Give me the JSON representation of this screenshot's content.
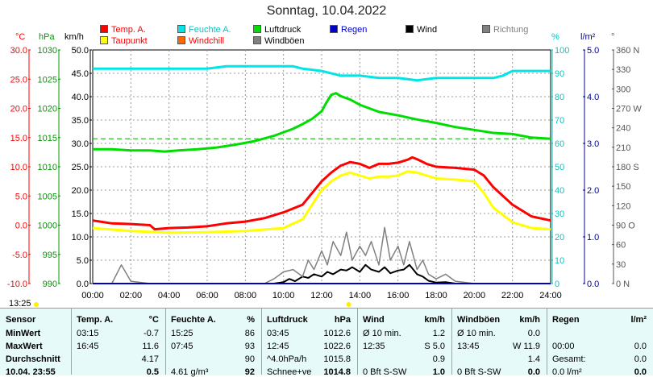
{
  "title": "Sonntag, 10.04.2022",
  "legend": [
    {
      "label": "Temp. A.",
      "color": "#ff0000",
      "text_color": "#ff0000"
    },
    {
      "label": "Taupunkt",
      "color": "#ffff00",
      "text_color": "#ff0000"
    },
    {
      "label": "Feuchte A.",
      "color": "#00e5e5",
      "text_color": "#00c8c8"
    },
    {
      "label": "Windchill",
      "color": "#ff6600",
      "text_color": "#ff0000"
    },
    {
      "label": "Luftdruck",
      "color": "#00dd00",
      "text_color": "#000000"
    },
    {
      "label": "Windböen",
      "color": "#808080",
      "text_color": "#000000"
    },
    {
      "label": "Regen",
      "color": "#0000cc",
      "text_color": "#0000cc"
    },
    {
      "label": "Wind",
      "color": "#000000",
      "text_color": "#000000"
    },
    {
      "label": "Richtung",
      "color": "#808080",
      "text_color": "#808080"
    }
  ],
  "units": {
    "temp": "°C",
    "press": "hPa",
    "wind": "km/h",
    "hum": "%",
    "rain": "l/m²",
    "dir": "°"
  },
  "current_time": "13:25",
  "chart_data": {
    "type": "line",
    "x_ticks": [
      "00:00",
      "02:00",
      "04:00",
      "06:00",
      "08:00",
      "10:00",
      "12:00",
      "14:00",
      "16:00",
      "18:00",
      "20:00",
      "22:00",
      "24:00"
    ],
    "axes": {
      "temp": {
        "ticks": [
          "30.0",
          "25.0",
          "20.0",
          "15.0",
          "10.0",
          "5.0",
          "0.0",
          "-5.0",
          "-10.0"
        ],
        "range": [
          -10,
          30
        ],
        "color": "#ff0000"
      },
      "press": {
        "ticks": [
          "1030",
          "1025",
          "1020",
          "1015",
          "1010",
          "1005",
          "1000",
          "995",
          "990"
        ],
        "range": [
          990,
          1030
        ],
        "color": "#009900"
      },
      "wind": {
        "ticks": [
          "50.0",
          "45.0",
          "40.0",
          "35.0",
          "30.0",
          "25.0",
          "20.0",
          "15.0",
          "10.0",
          "5.0",
          "0.0"
        ],
        "range": [
          0,
          50
        ],
        "color": "#000000"
      },
      "hum": {
        "ticks": [
          "100",
          "90",
          "80",
          "70",
          "60",
          "50",
          "40",
          "30",
          "20",
          "10",
          "0"
        ],
        "range": [
          0,
          100
        ],
        "color": "#00c8c8"
      },
      "rain": {
        "ticks": [
          "5.0",
          "4.0",
          "3.0",
          "2.0",
          "1.0",
          "0.0"
        ],
        "range": [
          0,
          5
        ],
        "color": "#000099"
      },
      "dir": {
        "ticks": [
          "360 N",
          "330",
          "300",
          "270 W",
          "240",
          "210",
          "180 S",
          "150",
          "120",
          "90 O",
          "60",
          "30",
          "0 N"
        ],
        "range": [
          0,
          360
        ],
        "color": "#555555"
      }
    },
    "series": [
      {
        "name": "Temp. A.",
        "axis": "temp",
        "color": "#ff0000",
        "x": [
          0,
          1,
          2,
          3,
          3.25,
          4,
          5,
          6,
          7,
          8,
          9,
          10,
          11,
          11.5,
          12,
          12.5,
          13,
          13.5,
          14,
          14.5,
          15,
          15.5,
          16,
          16.5,
          16.75,
          17,
          17.5,
          18,
          19,
          20,
          20.5,
          21,
          22,
          23,
          24
        ],
        "y": [
          0.8,
          0.3,
          0.2,
          0,
          -0.7,
          -0.5,
          -0.4,
          -0.2,
          0.3,
          0.6,
          1.2,
          2.2,
          3.5,
          5.5,
          7.5,
          9,
          10.2,
          10.8,
          10.5,
          9.8,
          10.5,
          10.5,
          10.7,
          11.2,
          11.6,
          11.3,
          10.5,
          10,
          9.8,
          9.5,
          8.5,
          6.5,
          3.5,
          1.5,
          0.8
        ]
      },
      {
        "name": "Taupunkt",
        "axis": "temp",
        "color": "#ffff00",
        "x": [
          0,
          2,
          4,
          6,
          8,
          10,
          11,
          11.5,
          12,
          12.5,
          13,
          13.5,
          14,
          14.5,
          15,
          15.5,
          16,
          16.5,
          17,
          17.5,
          18,
          19,
          20,
          20.5,
          21,
          22,
          23,
          24
        ],
        "y": [
          -0.5,
          -1,
          -1.3,
          -1.2,
          -1,
          -0.5,
          1,
          3.5,
          6,
          7.5,
          8.5,
          9,
          8.5,
          8,
          8.3,
          8.3,
          8.5,
          9.2,
          9,
          8.5,
          8,
          7.8,
          7.5,
          5.5,
          3,
          0.5,
          -0.5,
          -0.7
        ]
      },
      {
        "name": "Feuchte A.",
        "axis": "hum",
        "color": "#00e5e5",
        "x": [
          0,
          2,
          4,
          6,
          7,
          9,
          10.5,
          11,
          12,
          13,
          14,
          15,
          16,
          17,
          18,
          19,
          20,
          21,
          21.5,
          22,
          23,
          24
        ],
        "y": [
          92,
          92,
          92,
          92,
          93,
          93,
          93,
          92,
          91,
          89,
          89,
          88,
          88,
          87,
          88,
          88,
          88,
          88,
          89,
          91,
          91,
          91
        ]
      },
      {
        "name": "Luftdruck",
        "axis": "press",
        "color": "#00dd00",
        "x": [
          0,
          1,
          2,
          3,
          3.75,
          4.5,
          5.5,
          6.5,
          7.5,
          8.5,
          9.5,
          10.5,
          11,
          11.5,
          12,
          12.25,
          12.5,
          12.75,
          13,
          13.5,
          14,
          14.5,
          15,
          16,
          17,
          18,
          19,
          20,
          21,
          22,
          23,
          24
        ],
        "y": [
          1013,
          1013,
          1012.8,
          1012.8,
          1012.6,
          1012.8,
          1013,
          1013.3,
          1013.8,
          1014.4,
          1015.3,
          1016.5,
          1017.3,
          1018.2,
          1019.5,
          1021,
          1022.3,
          1022.6,
          1022.1,
          1021.5,
          1020.6,
          1020,
          1019.4,
          1018.8,
          1018.1,
          1017.5,
          1016.8,
          1016.3,
          1015.8,
          1015.6,
          1015,
          1014.8
        ]
      },
      {
        "name": "Wind",
        "axis": "wind",
        "color": "#000000",
        "x": [
          0,
          9.5,
          10,
          10.3,
          10.6,
          11,
          11.3,
          11.6,
          12,
          12.3,
          12.6,
          13,
          13.3,
          13.6,
          14,
          14.3,
          14.6,
          15,
          15.3,
          15.6,
          16,
          16.3,
          16.6,
          17,
          17.3,
          17.6,
          18,
          18.5,
          19,
          20,
          21,
          22,
          23,
          24
        ],
        "y": [
          0,
          0,
          0.3,
          1,
          0.5,
          1.5,
          1.2,
          2,
          1.5,
          2.5,
          2,
          3,
          2.8,
          3.5,
          2.5,
          4,
          3,
          2.5,
          3.5,
          2.2,
          2.8,
          3,
          4,
          2,
          1.5,
          0.6,
          0.2,
          0.3,
          0,
          0,
          0,
          0,
          0,
          0
        ]
      },
      {
        "name": "Windböen",
        "axis": "wind",
        "color": "#808080",
        "x": [
          0,
          1,
          1.5,
          2,
          3,
          5,
          9,
          9.5,
          10,
          10.5,
          11,
          11.3,
          11.6,
          12,
          12.3,
          12.6,
          13,
          13.3,
          13.6,
          14,
          14.3,
          14.6,
          15,
          15.3,
          15.6,
          16,
          16.3,
          16.6,
          17,
          17.3,
          17.6,
          18,
          18.5,
          19,
          20,
          21,
          22,
          23,
          24
        ],
        "y": [
          0,
          0,
          4,
          0.5,
          0,
          0,
          0,
          1,
          2.5,
          3,
          1.5,
          5,
          3,
          7,
          4,
          9,
          6,
          11,
          5,
          8,
          6,
          9,
          4,
          12,
          5,
          8,
          4,
          9,
          3,
          5,
          2,
          1,
          2,
          0.5,
          0,
          0,
          0,
          0,
          0
        ]
      },
      {
        "name": "Regen",
        "axis": "rain",
        "color": "#0000cc",
        "x": [
          0,
          24
        ],
        "y": [
          0,
          0
        ]
      }
    ],
    "reference_line": {
      "axis": "press",
      "value": 1014.8,
      "color": "#00aa00"
    }
  },
  "footer": {
    "columns": [
      {
        "header": "Sensor",
        "unit": "",
        "rows": [
          "MinWert",
          "MaxWert",
          "Durchschnitt",
          "10.04. 23:55"
        ]
      },
      {
        "header": "Temp. A.",
        "unit": "°C",
        "rows": [
          [
            "03:15",
            "-0.7"
          ],
          [
            "16:45",
            "11.6"
          ],
          [
            "",
            "4.17"
          ],
          [
            "",
            "0.5"
          ]
        ]
      },
      {
        "header": "Feuchte A.",
        "unit": "%",
        "rows": [
          [
            "15:25",
            "86"
          ],
          [
            "07:45",
            "93"
          ],
          [
            "",
            "90"
          ],
          [
            "4.61 g/m³",
            "92"
          ]
        ]
      },
      {
        "header": "Luftdruck",
        "unit": "hPa",
        "rows": [
          [
            "03:45",
            "1012.6"
          ],
          [
            "12:45",
            "1022.6"
          ],
          [
            "^4.0hPa/h",
            "1015.8"
          ],
          [
            "Schnee+ve",
            "1014.8"
          ]
        ]
      },
      {
        "header": "Wind",
        "unit": "km/h",
        "rows": [
          [
            "Ø 10 min.",
            "1.2"
          ],
          [
            "12:35",
            "S 5.0"
          ],
          [
            "",
            "0.9"
          ],
          [
            "0 Bft S-SW",
            "1.0"
          ]
        ]
      },
      {
        "header": "Windböen",
        "unit": "km/h",
        "rows": [
          [
            "Ø 10 min.",
            "0.0"
          ],
          [
            "13:45",
            "W 11.9"
          ],
          [
            "",
            "1.4"
          ],
          [
            "0 Bft S-SW",
            "0.0"
          ]
        ]
      },
      {
        "header": "Regen",
        "unit": "l/m²",
        "rows": [
          [
            "",
            ""
          ],
          [
            "00:00",
            "0.0"
          ],
          [
            "Gesamt:",
            "0.0"
          ],
          [
            "0.0 l/m²",
            "0.0"
          ]
        ]
      }
    ]
  }
}
